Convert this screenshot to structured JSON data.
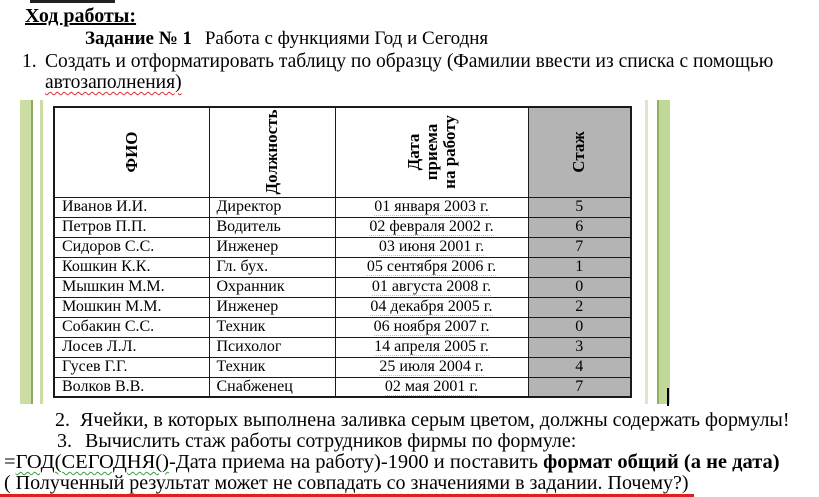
{
  "page": {
    "title": "Ход работы:",
    "subtitle_bold": "Задание № 1",
    "subtitle_rest": " Работа с функциями Год и Сегодня",
    "item1_number": "1.",
    "item1_line1": "Создать и отформатировать таблицу по образцу (Фамилии ввести из списка с помощью",
    "item1_line2": "автозаполнения)"
  },
  "table": {
    "headers": {
      "fio": "ФИО",
      "position": "Должность",
      "date": "Дата\nприема\nна работу",
      "experience": "Стаж"
    },
    "rows": [
      {
        "name": "Иванов И.И.",
        "position": "Директор",
        "date": "01 января 2003 г.",
        "experience": "5"
      },
      {
        "name": "Петров П.П.",
        "position": "Водитель",
        "date": "02 февраля 2002 г.",
        "experience": "6"
      },
      {
        "name": "Сидоров С.С.",
        "position": "Инженер",
        "date": "03 июня 2001 г.",
        "experience": "7"
      },
      {
        "name": "Кошкин К.К.",
        "position": "Гл. бух.",
        "date": "05 сентября 2006 г.",
        "experience": "1"
      },
      {
        "name": "Мышкин М.М.",
        "position": "Охранник",
        "date": "01 августа 2008 г.",
        "experience": "0"
      },
      {
        "name": "Мошкин М.М.",
        "position": "Инженер",
        "date": "04 декабря 2005 г.",
        "experience": "2"
      },
      {
        "name": "Собакин С.С.",
        "position": "Техник",
        "date": "06 ноября 2007 г.",
        "experience": "0"
      },
      {
        "name": "Лосев Л.Л.",
        "position": "Психолог",
        "date": "14 апреля 2005 г.",
        "experience": "3"
      },
      {
        "name": "Гусев Г.Г.",
        "position": "Техник",
        "date": "25 июля 2004 г.",
        "experience": "4"
      },
      {
        "name": "Волков В.В.",
        "position": "Снабженец",
        "date": "02 мая 2001 г.",
        "experience": "7"
      }
    ]
  },
  "notes": {
    "item2_number": "2.",
    "item2_text": "Ячейки, в которых выполнена заливка серым цветом, должны содержать формулы!",
    "item3_number": "3.",
    "item3_text": "Вычислить стаж работы сотрудников фирмы по формуле:",
    "formula_eq": "=",
    "formula_func": "ГОД(СЕГОДНЯ()",
    "formula_rest": "-Дата приема на работу)-1900 и поставить ",
    "formula_bold": "формат общий (а не дата)",
    "note_text": "( Полученный результат может не совпадать со значениями в задании. Почему?)"
  },
  "colors": {
    "gray_fill": "#b4b4b4",
    "bar_light": "#ccdda4",
    "bar_dark": "#8ea965",
    "red_line": "#e02020"
  }
}
